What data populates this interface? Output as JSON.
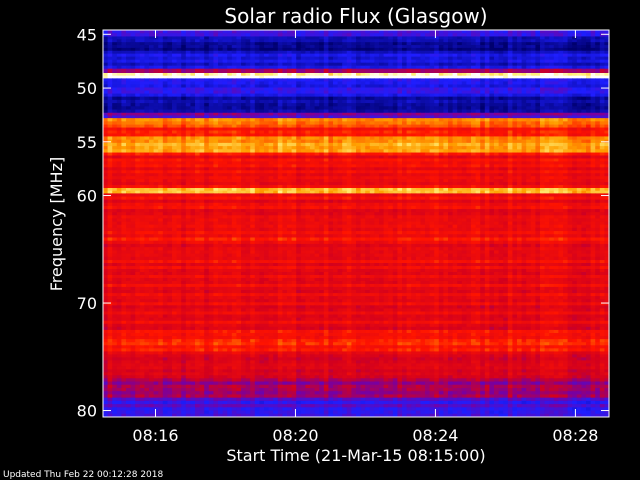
{
  "chart_data": {
    "type": "heatmap",
    "title": "Solar radio Flux (Glasgow)",
    "xlabel": "Start Time (21-Mar-15 08:15:00)",
    "ylabel": "Frequency [MHz]",
    "x_range_minutes": [
      8.25,
      15.48
    ],
    "y_range_mhz": [
      44.6,
      80.6
    ],
    "x_ticks": [
      {
        "value": 9,
        "label": "08:16"
      },
      {
        "value": 11,
        "label": "08:20"
      },
      {
        "value": 13,
        "label": "08:24"
      },
      {
        "value": 15,
        "label": "08:28"
      }
    ],
    "y_ticks": [
      {
        "value": 45,
        "label": "45"
      },
      {
        "value": 50,
        "label": "50"
      },
      {
        "value": 55,
        "label": "55"
      },
      {
        "value": 60,
        "label": "60"
      },
      {
        "value": 70,
        "label": "70"
      },
      {
        "value": 80,
        "label": "80"
      }
    ],
    "bands": [
      {
        "from": 44.6,
        "to": 45.2,
        "level": 0.25
      },
      {
        "from": 45.2,
        "to": 46.8,
        "level": 0.08
      },
      {
        "from": 46.8,
        "to": 48.2,
        "level": 0.18
      },
      {
        "from": 48.2,
        "to": 48.6,
        "level": 0.45
      },
      {
        "from": 48.6,
        "to": 49.1,
        "level": 1.0
      },
      {
        "from": 49.1,
        "to": 50.8,
        "level": 0.2
      },
      {
        "from": 50.8,
        "to": 52.3,
        "level": 0.12
      },
      {
        "from": 52.3,
        "to": 52.8,
        "level": 0.35
      },
      {
        "from": 52.8,
        "to": 53.4,
        "level": 0.85
      },
      {
        "from": 53.4,
        "to": 54.5,
        "level": 0.7
      },
      {
        "from": 54.5,
        "to": 56.0,
        "level": 0.82
      },
      {
        "from": 56.0,
        "to": 59.3,
        "level": 0.62
      },
      {
        "from": 59.3,
        "to": 59.8,
        "level": 0.9
      },
      {
        "from": 59.8,
        "to": 63.0,
        "level": 0.6
      },
      {
        "from": 63.0,
        "to": 64.5,
        "level": 0.64
      },
      {
        "from": 64.5,
        "to": 66.0,
        "level": 0.55
      },
      {
        "from": 66.0,
        "to": 68.5,
        "level": 0.6
      },
      {
        "from": 68.5,
        "to": 72.5,
        "level": 0.58
      },
      {
        "from": 72.5,
        "to": 74.5,
        "level": 0.66
      },
      {
        "from": 74.5,
        "to": 77.0,
        "level": 0.55
      },
      {
        "from": 77.0,
        "to": 78.8,
        "level": 0.42
      },
      {
        "from": 78.8,
        "to": 80.6,
        "level": 0.3
      }
    ],
    "colors": {
      "background": "#000000",
      "low": "#000080",
      "mid_low": "#2020ff",
      "mid": "#ff0000",
      "high": "#ffcc00",
      "max": "#ffffff"
    }
  },
  "footer": {
    "updated": "Updated Thu Feb 22 00:12:28 2018"
  }
}
